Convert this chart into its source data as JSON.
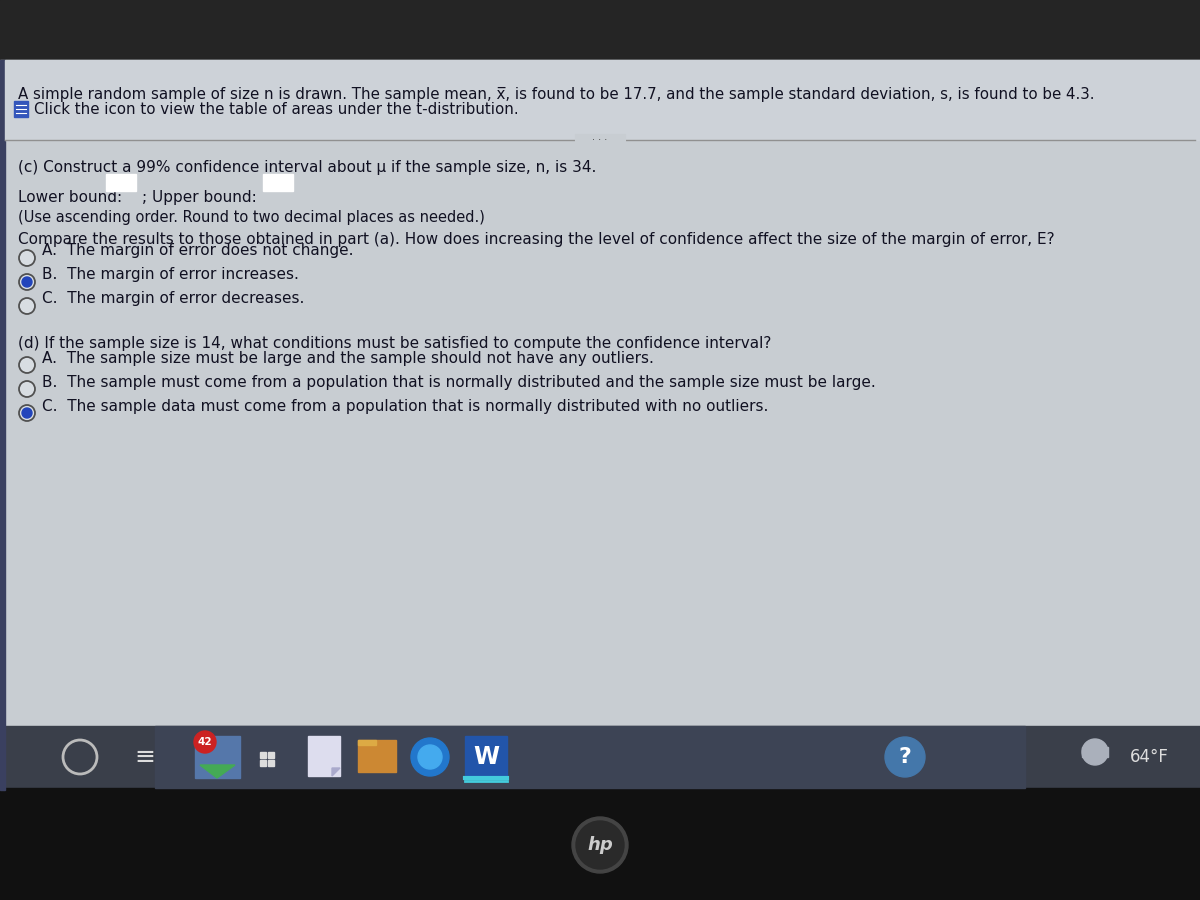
{
  "bg_dark_top": "#2a2a2a",
  "bg_main": "#c8cdd2",
  "bg_header": "#cdd1d6",
  "bg_taskbar": "#3a3f4a",
  "text_color": "#1a1a2e",
  "header_text1": "A simple random sample of size n is drawn. The sample mean, x̅, is found to be 17.7, and the sample standard deviation, s, is found to be 4.3.",
  "header_text2": "Click the icon to view the table of areas under the t-distribution.",
  "part_c_title": "(c) Construct a 99% confidence interval about μ if the sample size, n, is 34.",
  "lower_bound_label": "Lower bound:",
  "upper_bound_label": "Upper bound:",
  "ascending_note": "(Use ascending order. Round to two decimal places as needed.)",
  "compare_text": "Compare the results to those obtained in part (a). How does increasing the level of confidence affect the size of the margin of error, E?",
  "option_A1": "A.  The margin of error does not change.",
  "option_B1": "B.  The margin of error increases.",
  "option_C1": "C.  The margin of error decreases.",
  "selected_A1": false,
  "selected_B1": true,
  "selected_C1": false,
  "part_d_title": "(d) If the sample size is 14, what conditions must be satisfied to compute the confidence interval?",
  "option_A2": "A.  The sample size must be large and the sample should not have any outliers.",
  "option_B2": "B.  The sample must come from a population that is normally distributed and the sample size must be large.",
  "option_C2": "C.  The sample data must come from a population that is normally distributed with no outliers.",
  "selected_A2": false,
  "selected_B2": false,
  "selected_C2": true,
  "taskbar_temp": "64°F"
}
